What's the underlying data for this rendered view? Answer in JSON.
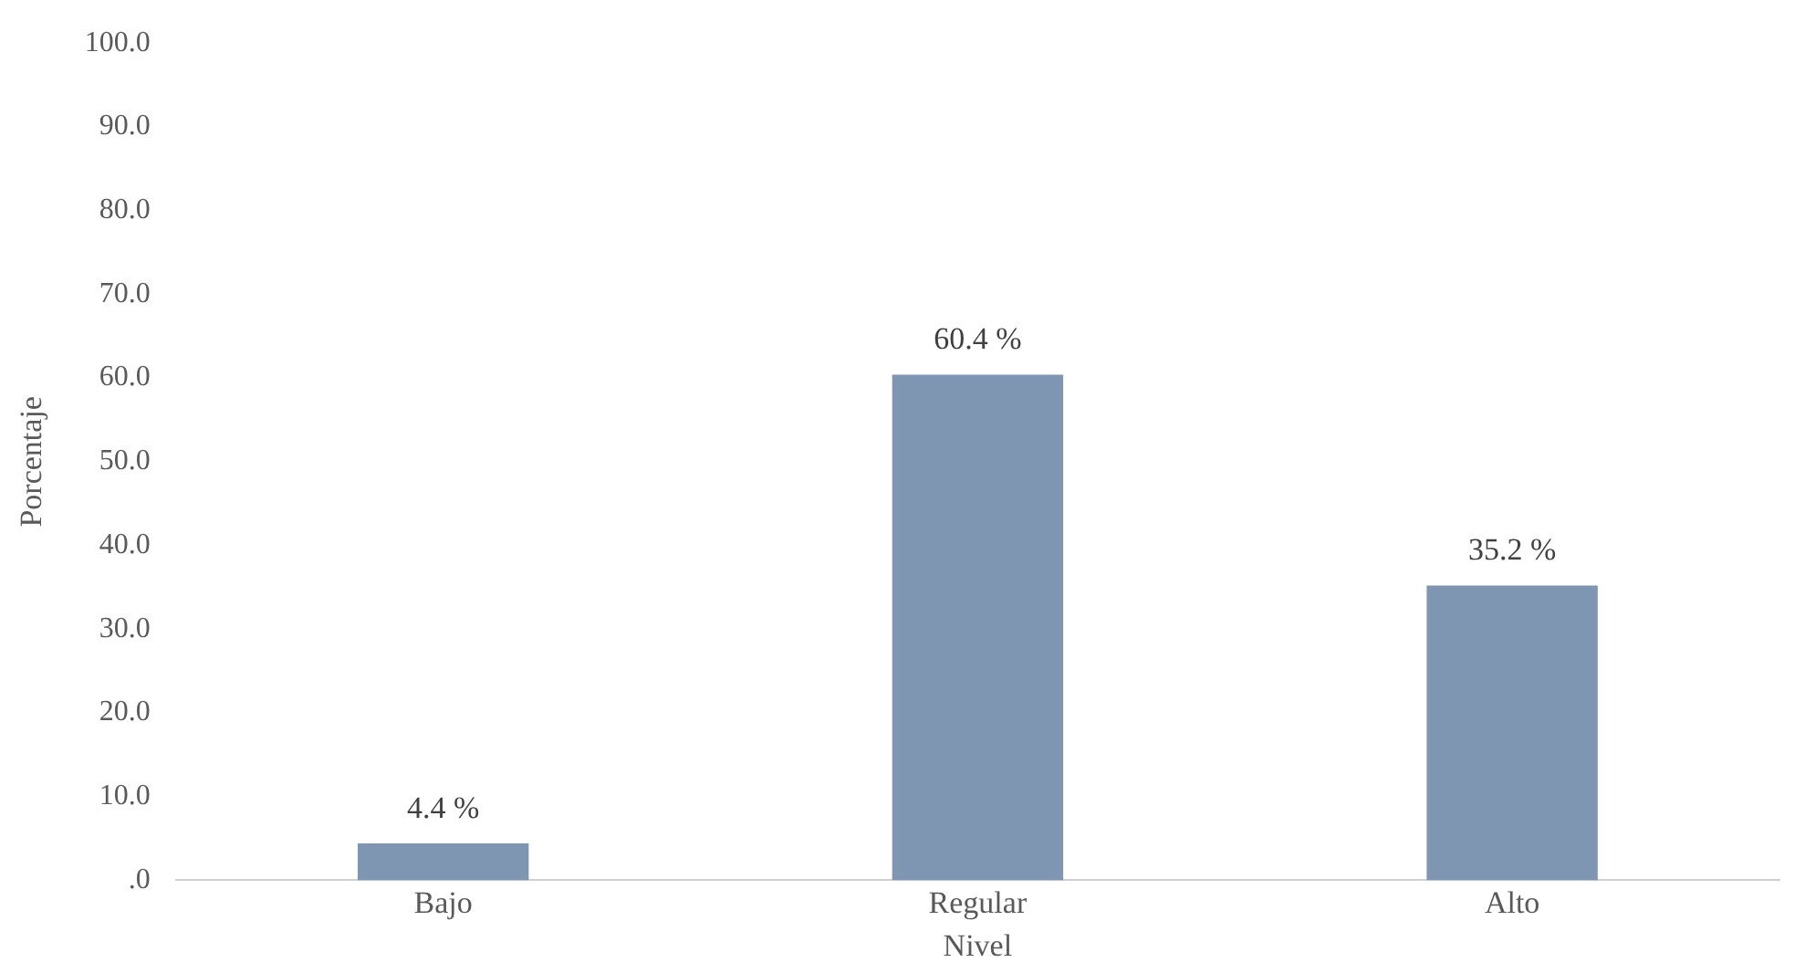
{
  "chart_data": {
    "type": "bar",
    "xlabel": "Nivel",
    "ylabel": "Porcentaje",
    "categories": [
      "Bajo",
      "Regular",
      "Alto"
    ],
    "values": [
      4.4,
      60.4,
      35.2
    ],
    "color": "#7f96b2",
    "value_labels": [
      "4.4 %",
      "60.4 %",
      "35.2 %"
    ],
    "ylim": [
      0,
      100
    ],
    "yticks": [
      {
        "value": 0,
        "label": ".0"
      },
      {
        "value": 10,
        "label": "10.0"
      },
      {
        "value": 20,
        "label": "20.0"
      },
      {
        "value": 30,
        "label": "30.0"
      },
      {
        "value": 40,
        "label": "40.0"
      },
      {
        "value": 50,
        "label": "50.0"
      },
      {
        "value": 60,
        "label": "60.0"
      },
      {
        "value": 70,
        "label": "70.0"
      },
      {
        "value": 80,
        "label": "80.0"
      },
      {
        "value": 90,
        "label": "90.0"
      },
      {
        "value": 100,
        "label": "100.0"
      }
    ],
    "grid": false,
    "legend": false
  }
}
